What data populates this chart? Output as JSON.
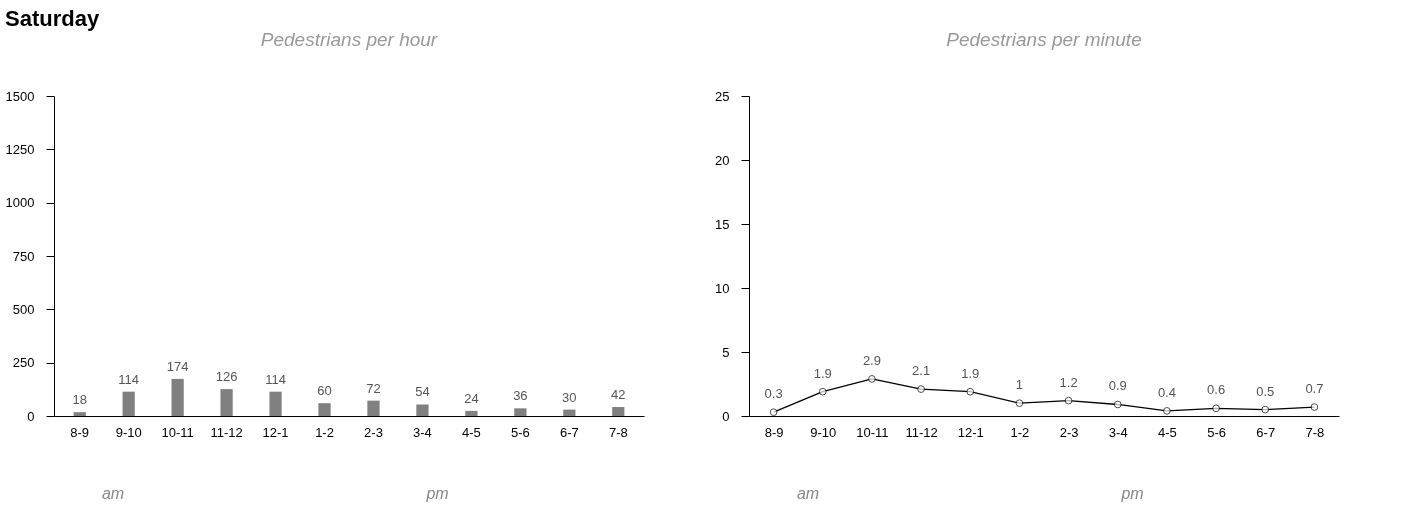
{
  "chart_data": [
    {
      "type": "bar",
      "title": "Saturday",
      "subtitle": "Pedestrians per hour",
      "categories": [
        "8-9",
        "9-10",
        "10-11",
        "11-12",
        "12-1",
        "1-2",
        "2-3",
        "3-4",
        "4-5",
        "5-6",
        "6-7",
        "7-8"
      ],
      "values": [
        18,
        114,
        174,
        126,
        114,
        60,
        72,
        54,
        24,
        36,
        30,
        42
      ],
      "color": "#808080",
      "ylim": [
        0,
        1500
      ],
      "yticks": [
        0,
        250,
        500,
        750,
        1000,
        1250,
        1500
      ],
      "data_labels": true,
      "grid": false,
      "annotations": [
        "am",
        "pm"
      ]
    },
    {
      "type": "line",
      "subtitle": "Pedestrians per minute",
      "categories": [
        "8-9",
        "9-10",
        "10-11",
        "11-12",
        "12-1",
        "1-2",
        "2-3",
        "3-4",
        "4-5",
        "5-6",
        "6-7",
        "7-8"
      ],
      "values": [
        0.3,
        1.9,
        2.9,
        2.1,
        1.9,
        1,
        1.2,
        0.9,
        0.4,
        0.6,
        0.5,
        0.7
      ],
      "color": "#000000",
      "marker": "circle",
      "ylim": [
        0,
        25
      ],
      "yticks": [
        0,
        5,
        10,
        15,
        20,
        25
      ],
      "data_labels": true,
      "grid": false,
      "annotations": [
        "am",
        "pm"
      ]
    }
  ]
}
